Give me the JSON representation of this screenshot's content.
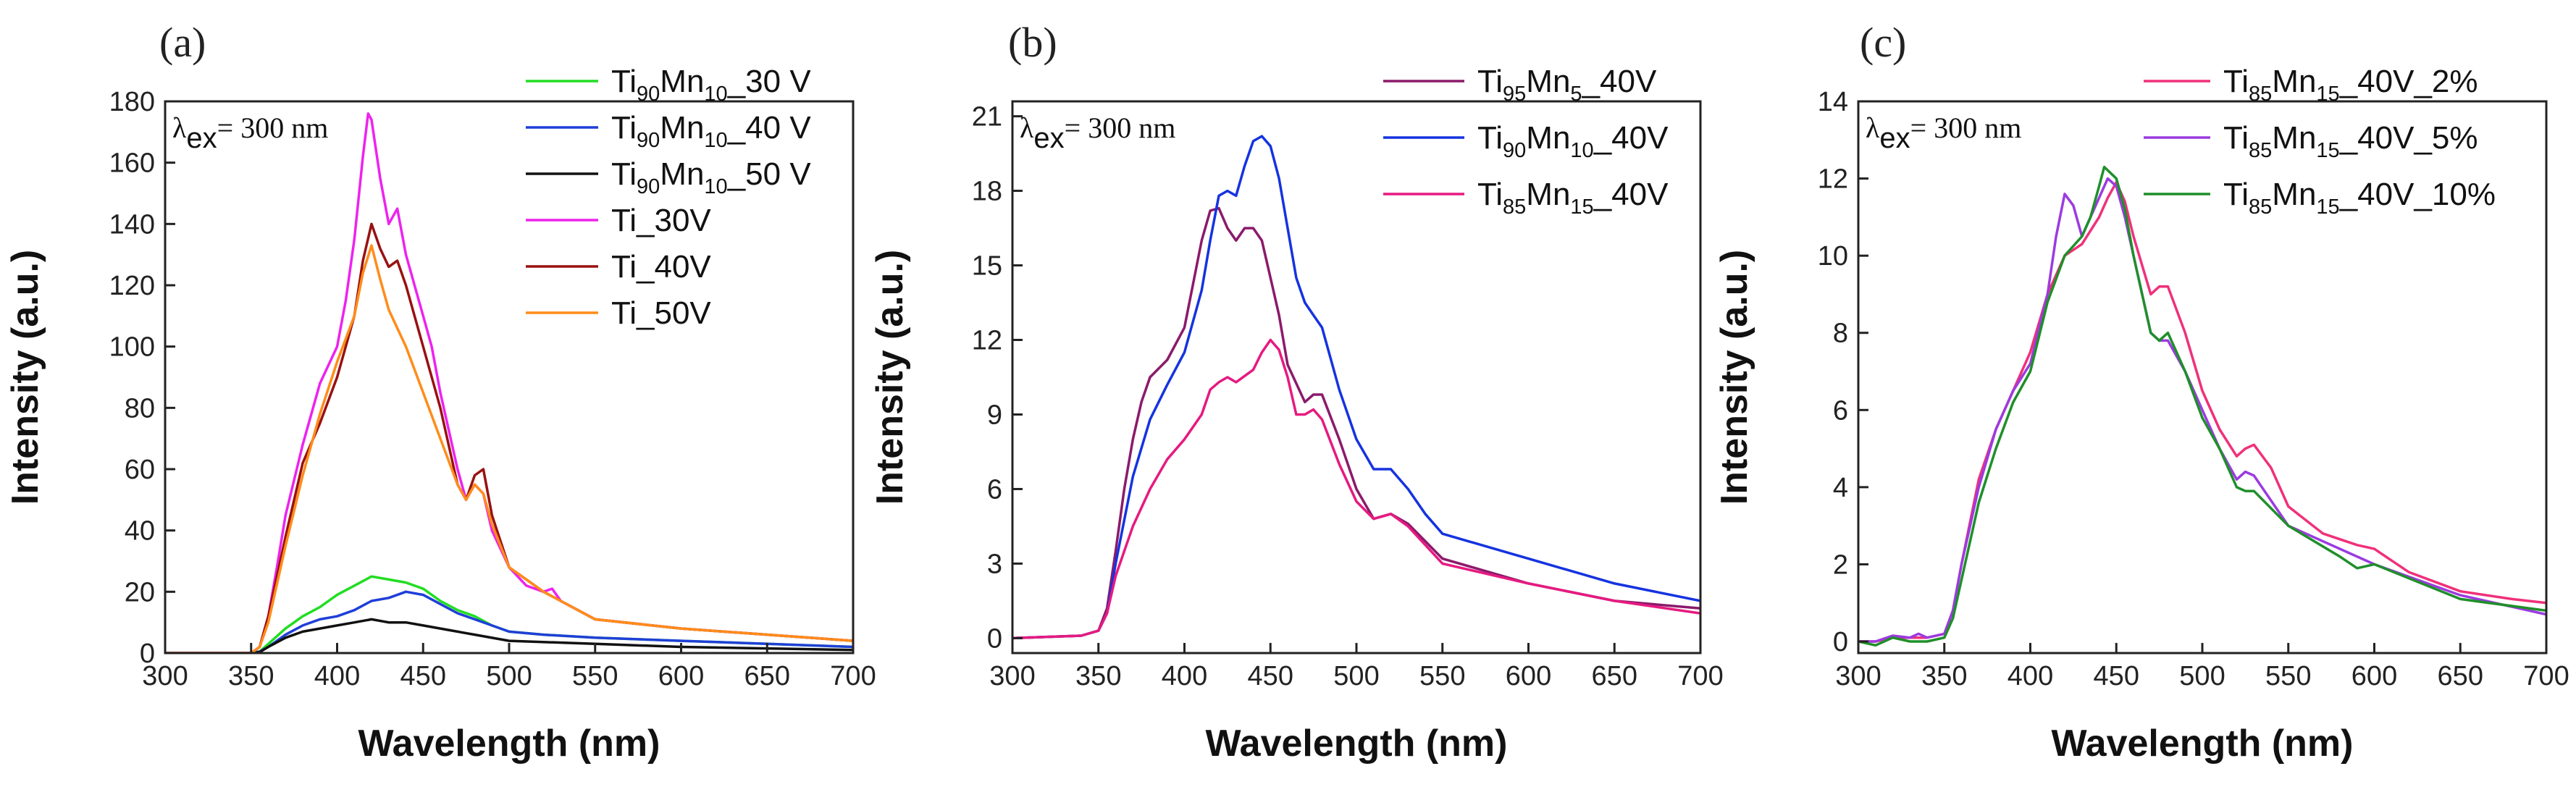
{
  "chart_data": [
    {
      "type": "line",
      "panel_label": "(a)",
      "annotation": {
        "symbol": "λ",
        "sub": "ex",
        "text": "= 300 nm"
      },
      "xlabel": "Wavelength (nm)",
      "ylabel": "Intensity (a.u.)",
      "xlim": [
        300,
        700
      ],
      "ylim": [
        0,
        180
      ],
      "xticks": [
        300,
        350,
        400,
        450,
        500,
        550,
        600,
        650,
        700
      ],
      "yticks": [
        0,
        20,
        40,
        60,
        80,
        100,
        120,
        140,
        160,
        180
      ],
      "legend": "top-right",
      "series": [
        {
          "name": "Ti90Mn10_30 V",
          "label_parts": [
            {
              "t": "Ti"
            },
            {
              "t": "90",
              "sub": true
            },
            {
              "t": "Mn"
            },
            {
              "t": "10",
              "sub": true
            },
            {
              "t": "_30 V"
            }
          ],
          "color": "#22dd22",
          "x": [
            300,
            340,
            350,
            355,
            360,
            370,
            380,
            390,
            400,
            410,
            420,
            430,
            440,
            450,
            460,
            470,
            480,
            490,
            500,
            520,
            550,
            600,
            650,
            700
          ],
          "y": [
            0,
            0,
            0,
            0.5,
            3,
            8,
            12,
            15,
            19,
            22,
            25,
            24,
            23,
            21,
            17,
            14,
            12,
            9,
            7,
            6,
            5,
            4,
            3,
            2
          ]
        },
        {
          "name": "Ti90Mn10_40 V",
          "label_parts": [
            {
              "t": "Ti"
            },
            {
              "t": "90",
              "sub": true
            },
            {
              "t": "Mn"
            },
            {
              "t": "10",
              "sub": true
            },
            {
              "t": "_40 V"
            }
          ],
          "color": "#1f3fd8",
          "x": [
            300,
            350,
            355,
            360,
            370,
            380,
            390,
            400,
            410,
            420,
            430,
            440,
            450,
            460,
            470,
            480,
            490,
            500,
            520,
            550,
            600,
            650,
            700
          ],
          "y": [
            0,
            0,
            0.5,
            2,
            6,
            9,
            11,
            12,
            14,
            17,
            18,
            20,
            19,
            16,
            13,
            11,
            9,
            7,
            6,
            5,
            4,
            3,
            2
          ]
        },
        {
          "name": "Ti90Mn10_50 V",
          "label_parts": [
            {
              "t": "Ti"
            },
            {
              "t": "90",
              "sub": true
            },
            {
              "t": "Mn"
            },
            {
              "t": "10",
              "sub": true
            },
            {
              "t": "_50 V"
            }
          ],
          "color": "#111111",
          "x": [
            300,
            350,
            355,
            360,
            370,
            380,
            390,
            400,
            410,
            420,
            430,
            440,
            450,
            460,
            470,
            480,
            500,
            550,
            600,
            650,
            700
          ],
          "y": [
            0,
            0,
            0.3,
            2,
            5,
            7,
            8,
            9,
            10,
            11,
            10,
            10,
            9,
            8,
            7,
            6,
            4,
            3,
            2,
            1.5,
            1
          ]
        },
        {
          "name": "Ti_30V",
          "label_parts": [
            {
              "t": "Ti_30V"
            }
          ],
          "color": "#ee22ee",
          "x": [
            300,
            350,
            355,
            360,
            365,
            370,
            380,
            390,
            400,
            405,
            410,
            415,
            418,
            420,
            425,
            430,
            435,
            440,
            450,
            455,
            460,
            470,
            475,
            480,
            485,
            490,
            500,
            510,
            520,
            525,
            530,
            550,
            600,
            650,
            700
          ],
          "y": [
            0,
            0,
            2,
            12,
            28,
            45,
            68,
            88,
            100,
            115,
            135,
            162,
            176,
            174,
            155,
            140,
            145,
            130,
            110,
            100,
            85,
            60,
            50,
            55,
            52,
            40,
            28,
            22,
            20,
            21,
            17,
            11,
            8,
            6,
            4
          ]
        },
        {
          "name": "Ti_40V",
          "label_parts": [
            {
              "t": "Ti_40V"
            }
          ],
          "color": "#991111",
          "x": [
            300,
            350,
            355,
            360,
            370,
            380,
            390,
            400,
            410,
            415,
            420,
            425,
            430,
            435,
            440,
            450,
            460,
            470,
            475,
            480,
            485,
            490,
            500,
            520,
            550,
            600,
            650,
            700
          ],
          "y": [
            0,
            0,
            2,
            12,
            38,
            62,
            75,
            90,
            110,
            128,
            140,
            132,
            126,
            128,
            120,
            100,
            80,
            55,
            50,
            58,
            60,
            45,
            28,
            20,
            11,
            8,
            6,
            4
          ]
        },
        {
          "name": "Ti_50V",
          "label_parts": [
            {
              "t": "Ti_50V"
            }
          ],
          "color": "#ff8c1a",
          "x": [
            300,
            350,
            355,
            360,
            370,
            380,
            390,
            400,
            410,
            415,
            420,
            425,
            430,
            440,
            450,
            460,
            470,
            475,
            480,
            485,
            490,
            500,
            520,
            550,
            600,
            650,
            700
          ],
          "y": [
            0,
            0,
            2,
            10,
            35,
            58,
            78,
            95,
            110,
            124,
            133,
            122,
            112,
            100,
            85,
            70,
            55,
            50,
            55,
            52,
            42,
            28,
            20,
            11,
            8,
            6,
            4
          ]
        }
      ]
    },
    {
      "type": "line",
      "panel_label": "(b)",
      "annotation": {
        "symbol": "λ",
        "sub": "ex",
        "text": "= 300 nm"
      },
      "xlabel": "Wavelength (nm)",
      "ylabel": "Intensity (a.u.)",
      "xlim": [
        300,
        700
      ],
      "ylim": [
        -0.6,
        21.6
      ],
      "xticks": [
        300,
        350,
        400,
        450,
        500,
        550,
        600,
        650,
        700
      ],
      "yticks": [
        0,
        3,
        6,
        9,
        12,
        15,
        18,
        21
      ],
      "legend": "top-right",
      "series": [
        {
          "name": "Ti95Mn5_40V",
          "label_parts": [
            {
              "t": "Ti"
            },
            {
              "t": "95",
              "sub": true
            },
            {
              "t": "Mn"
            },
            {
              "t": "5",
              "sub": true
            },
            {
              "t": "_40V"
            }
          ],
          "color": "#8b1a6b",
          "x": [
            300,
            340,
            350,
            355,
            360,
            365,
            370,
            375,
            380,
            390,
            400,
            410,
            415,
            420,
            425,
            430,
            435,
            440,
            445,
            450,
            455,
            460,
            470,
            475,
            480,
            490,
            500,
            510,
            520,
            530,
            550,
            600,
            650,
            700
          ],
          "y": [
            0,
            0.1,
            0.3,
            1.2,
            3.5,
            6.0,
            8.0,
            9.5,
            10.5,
            11.2,
            12.5,
            16.0,
            17.2,
            17.3,
            16.5,
            16.0,
            16.5,
            16.5,
            16.0,
            14.5,
            13.0,
            11.0,
            9.5,
            9.8,
            9.8,
            8.0,
            6.0,
            4.8,
            5.0,
            4.6,
            3.2,
            2.2,
            1.5,
            1.2
          ]
        },
        {
          "name": "Ti90Mn10_40V",
          "label_parts": [
            {
              "t": "Ti"
            },
            {
              "t": "90",
              "sub": true
            },
            {
              "t": "Mn"
            },
            {
              "t": "10",
              "sub": true
            },
            {
              "t": "_40V"
            }
          ],
          "color": "#1533e0",
          "x": [
            300,
            340,
            350,
            355,
            360,
            370,
            380,
            390,
            400,
            410,
            415,
            420,
            425,
            430,
            435,
            440,
            445,
            450,
            455,
            460,
            465,
            470,
            475,
            480,
            490,
            500,
            510,
            520,
            530,
            540,
            550,
            600,
            650,
            700
          ],
          "y": [
            0,
            0.1,
            0.3,
            1.0,
            3.0,
            6.5,
            8.8,
            10.2,
            11.5,
            14.0,
            16.0,
            17.8,
            18.0,
            17.8,
            19.0,
            20.0,
            20.2,
            19.8,
            18.5,
            16.5,
            14.5,
            13.5,
            13.0,
            12.5,
            10.0,
            8.0,
            6.8,
            6.8,
            6.0,
            5.0,
            4.2,
            3.2,
            2.2,
            1.5
          ]
        },
        {
          "name": "Ti85Mn15_40V",
          "label_parts": [
            {
              "t": "Ti"
            },
            {
              "t": "85",
              "sub": true
            },
            {
              "t": "Mn"
            },
            {
              "t": "15",
              "sub": true
            },
            {
              "t": "_40V"
            }
          ],
          "color": "#e61a80",
          "x": [
            300,
            340,
            350,
            355,
            360,
            370,
            380,
            390,
            400,
            410,
            415,
            420,
            425,
            430,
            440,
            445,
            450,
            455,
            460,
            465,
            470,
            475,
            480,
            490,
            500,
            510,
            520,
            530,
            550,
            600,
            650,
            700
          ],
          "y": [
            0,
            0.1,
            0.3,
            1.0,
            2.5,
            4.5,
            6.0,
            7.2,
            8.0,
            9.0,
            10.0,
            10.3,
            10.5,
            10.3,
            10.8,
            11.5,
            12.0,
            11.6,
            10.5,
            9.0,
            9.0,
            9.2,
            8.8,
            7.0,
            5.5,
            4.8,
            5.0,
            4.5,
            3.0,
            2.2,
            1.5,
            1.0
          ]
        }
      ]
    },
    {
      "type": "line",
      "panel_label": "(c)",
      "annotation": {
        "symbol": "λ",
        "sub": "ex",
        "text": "= 300 nm"
      },
      "xlabel": "Wavelength (nm)",
      "ylabel": "Intensity (a.u.)",
      "xlim": [
        300,
        700
      ],
      "ylim": [
        -0.3,
        14
      ],
      "xticks": [
        300,
        350,
        400,
        450,
        500,
        550,
        600,
        650,
        700
      ],
      "yticks": [
        0,
        2,
        4,
        6,
        8,
        10,
        12,
        14
      ],
      "legend": "top-right",
      "series": [
        {
          "name": "Ti85Mn15_40V_2%",
          "label_parts": [
            {
              "t": "Ti"
            },
            {
              "t": "85",
              "sub": true
            },
            {
              "t": "Mn"
            },
            {
              "t": "15",
              "sub": true
            },
            {
              "t": "_40V_2%"
            }
          ],
          "color": "#f0307a",
          "x": [
            300,
            310,
            320,
            330,
            340,
            350,
            355,
            360,
            370,
            380,
            390,
            400,
            410,
            420,
            430,
            440,
            445,
            450,
            455,
            460,
            470,
            475,
            480,
            490,
            500,
            510,
            520,
            525,
            530,
            540,
            550,
            570,
            590,
            600,
            620,
            650,
            680,
            700
          ],
          "y": [
            0,
            0,
            0.1,
            0.1,
            0.1,
            0.2,
            0.8,
            2.0,
            4.2,
            5.5,
            6.5,
            7.5,
            9.0,
            10.0,
            10.3,
            11.0,
            11.5,
            11.9,
            11.4,
            10.5,
            9.0,
            9.2,
            9.2,
            8.0,
            6.5,
            5.5,
            4.8,
            5.0,
            5.1,
            4.5,
            3.5,
            2.8,
            2.5,
            2.4,
            1.8,
            1.3,
            1.1,
            1.0
          ]
        },
        {
          "name": "Ti85Mn15_40V_5%",
          "label_parts": [
            {
              "t": "Ti"
            },
            {
              "t": "85",
              "sub": true
            },
            {
              "t": "Mn"
            },
            {
              "t": "15",
              "sub": true
            },
            {
              "t": "_40V_5%"
            }
          ],
          "color": "#9b3be0",
          "x": [
            300,
            310,
            320,
            330,
            335,
            340,
            350,
            355,
            360,
            370,
            380,
            390,
            400,
            410,
            415,
            420,
            425,
            430,
            440,
            445,
            450,
            455,
            460,
            470,
            475,
            480,
            490,
            500,
            510,
            520,
            525,
            530,
            550,
            600,
            650,
            700
          ],
          "y": [
            0,
            0,
            0.15,
            0.1,
            0.2,
            0.1,
            0.2,
            0.8,
            2.0,
            4.0,
            5.5,
            6.5,
            7.2,
            9.0,
            10.5,
            11.6,
            11.3,
            10.5,
            11.5,
            12.0,
            11.8,
            11.0,
            10.0,
            8.0,
            7.8,
            7.8,
            7.0,
            6.0,
            5.0,
            4.2,
            4.4,
            4.3,
            3.0,
            2.0,
            1.2,
            0.7
          ]
        },
        {
          "name": "Ti85Mn15_40V_10%",
          "label_parts": [
            {
              "t": "Ti"
            },
            {
              "t": "85",
              "sub": true
            },
            {
              "t": "Mn"
            },
            {
              "t": "15",
              "sub": true
            },
            {
              "t": "_40V_10%"
            }
          ],
          "color": "#1f8f2a",
          "x": [
            300,
            310,
            320,
            330,
            340,
            350,
            355,
            360,
            370,
            380,
            390,
            400,
            410,
            420,
            430,
            435,
            440,
            443,
            450,
            455,
            460,
            470,
            475,
            480,
            490,
            500,
            510,
            520,
            525,
            530,
            550,
            580,
            590,
            600,
            650,
            700
          ],
          "y": [
            0,
            -0.1,
            0.1,
            0,
            0,
            0.1,
            0.6,
            1.6,
            3.6,
            5.0,
            6.2,
            7.0,
            8.8,
            10.0,
            10.5,
            11.0,
            11.8,
            12.3,
            12.0,
            11.2,
            10.0,
            8.0,
            7.8,
            8.0,
            7.0,
            5.8,
            5.0,
            4.0,
            3.9,
            3.9,
            3.0,
            2.2,
            1.9,
            2.0,
            1.1,
            0.8
          ]
        }
      ]
    }
  ]
}
